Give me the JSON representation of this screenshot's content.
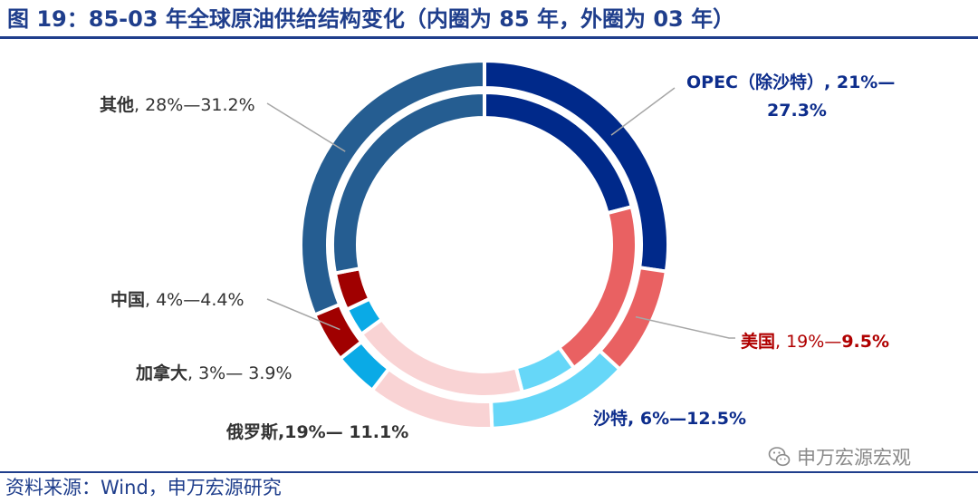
{
  "title": "图 19：85-03 年全球原油供给结构变化（内圈为 85 年，外圈为 03 年）",
  "source": "资料来源：Wind，申万宏源研究",
  "watermark": {
    "text": "申万宏源宏观",
    "icon": "wechat-icon"
  },
  "chart_data": {
    "type": "donut",
    "rings": [
      {
        "year": "85",
        "position": "inner"
      },
      {
        "year": "03",
        "position": "outer"
      }
    ],
    "slices": [
      {
        "label": "OPEC（除沙特）",
        "inner": 21,
        "outer": 27.3,
        "color": "#00298a",
        "text_name": "OPEC（除沙特）",
        "text_rest": ", 21%—",
        "text_line2": "27.3%",
        "label_color": "#0d2d8c",
        "bold": true
      },
      {
        "label": "美国",
        "inner": 19,
        "outer": 9.5,
        "color": "#e96162",
        "text_name": "美国",
        "text_rest": ", 19%—",
        "text_bold_tail": "9.5%",
        "label_color": "#b00000",
        "bold": false
      },
      {
        "label": "沙特",
        "inner": 6,
        "outer": 12.5,
        "color": "#66d7f8",
        "text_name": "沙特",
        "text_rest": ", 6%—12.5%",
        "label_color": "#0d2d8c",
        "bold": true
      },
      {
        "label": "俄罗斯",
        "inner": 19,
        "outer": 11.1,
        "color": "#f9d3d4",
        "text_name": "俄罗斯",
        "text_rest": ",19%— 11.1%",
        "label_color": "#333333",
        "bold": true
      },
      {
        "label": "加拿大",
        "inner": 3,
        "outer": 3.9,
        "color": "#0aaae6",
        "text_name": "加拿大",
        "text_rest": ", 3%— 3.9%",
        "label_color": "#333333",
        "bold": false
      },
      {
        "label": "中国",
        "inner": 4,
        "outer": 4.4,
        "color": "#a00000",
        "text_name": "中国",
        "text_rest": ", 4%—4.4%",
        "label_color": "#333333",
        "bold": false
      },
      {
        "label": "其他",
        "inner": 28,
        "outer": 31.2,
        "color": "#255d91",
        "text_name": "其他",
        "text_rest": ", 28%—31.2%",
        "label_color": "#333333",
        "bold": false
      }
    ]
  }
}
